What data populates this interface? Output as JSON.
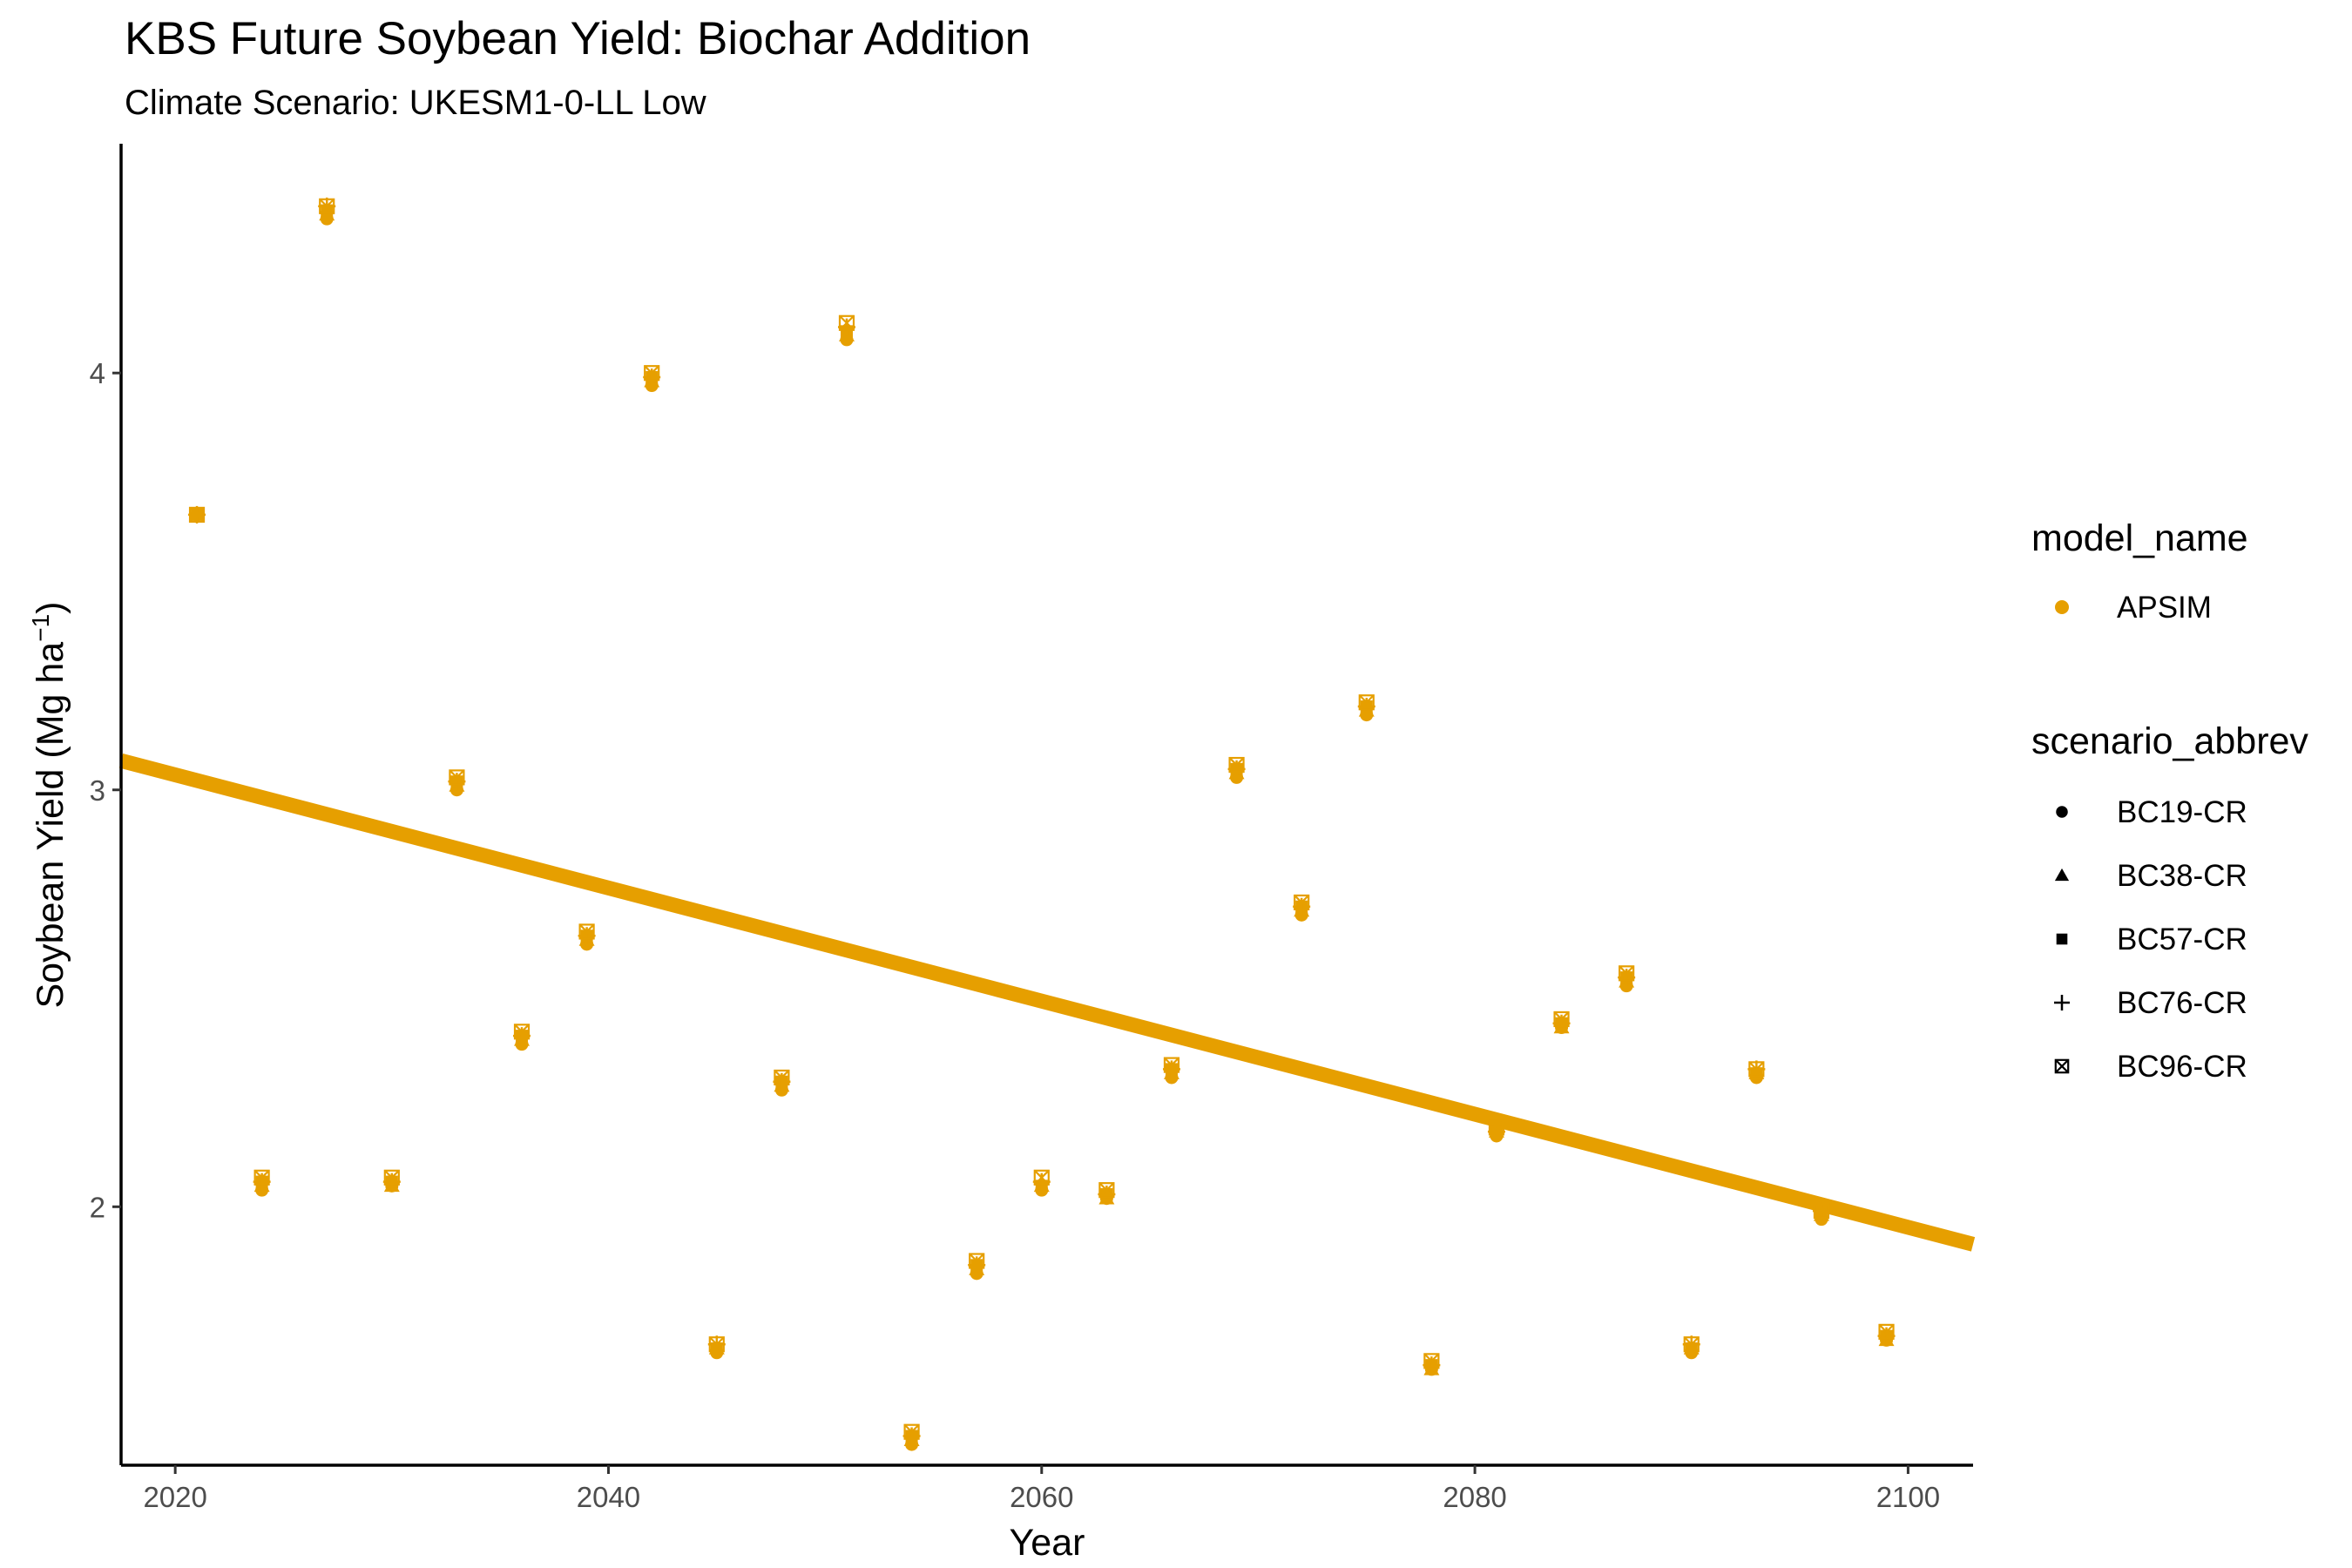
{
  "chart_data": {
    "type": "scatter",
    "title": "KBS Future Soybean Yield: Biochar Addition",
    "subtitle": "Climate Scenario: UKESM1-0-LL Low",
    "xlabel": "Year",
    "ylabel_main": "Soybean Yield (Mg ha",
    "ylabel_sup": "−1",
    "ylabel_close": ")",
    "xlim": [
      2017.5,
      2103
    ],
    "ylim": [
      1.38,
      4.55
    ],
    "x_ticks": [
      2020,
      2040,
      2060,
      2080,
      2100
    ],
    "y_ticks": [
      2,
      3,
      4
    ],
    "grid": false,
    "color": "#E69F00",
    "legend_placement": "right",
    "legend": {
      "color_title": "model_name",
      "color_entries": [
        "APSIM"
      ],
      "shape_title": "scenario_abbrev",
      "shape_entries": [
        {
          "label": "BC19-CR",
          "shape": "circle"
        },
        {
          "label": "BC38-CR",
          "shape": "triangle"
        },
        {
          "label": "BC57-CR",
          "shape": "square"
        },
        {
          "label": "BC76-CR",
          "shape": "plus"
        },
        {
          "label": "BC96-CR",
          "shape": "boxed-x"
        }
      ]
    },
    "trend_line": {
      "x": [
        2017.5,
        2103
      ],
      "y": [
        3.07,
        1.91
      ]
    },
    "x": [
      2021,
      2024,
      2027,
      2030,
      2033,
      2036,
      2039,
      2042,
      2045,
      2048,
      2051,
      2054,
      2057,
      2060,
      2063,
      2066,
      2069,
      2072,
      2075,
      2078,
      2081,
      2084,
      2087,
      2090,
      2093,
      2096,
      2099
    ],
    "series": [
      {
        "name": "BC19-CR",
        "values": [
          3.66,
          2.04,
          4.37,
          2.05,
          3.0,
          2.39,
          2.63,
          3.97,
          1.65,
          2.28,
          4.08,
          1.43,
          1.84,
          2.04,
          2.02,
          2.31,
          3.03,
          2.7,
          3.18,
          1.61,
          2.17,
          2.43,
          2.53,
          1.65,
          2.31,
          1.97,
          1.68
        ]
      },
      {
        "name": "BC38-CR",
        "values": [
          3.66,
          2.05,
          4.38,
          2.05,
          3.01,
          2.4,
          2.64,
          3.98,
          1.66,
          2.29,
          4.09,
          1.44,
          1.85,
          2.05,
          2.02,
          2.32,
          3.04,
          2.71,
          3.19,
          1.61,
          2.18,
          2.43,
          2.54,
          1.66,
          2.32,
          1.98,
          1.68
        ]
      },
      {
        "name": "BC57-CR",
        "values": [
          3.66,
          2.06,
          4.39,
          2.06,
          3.02,
          2.41,
          2.65,
          3.99,
          1.66,
          2.3,
          4.1,
          1.45,
          1.86,
          2.05,
          2.03,
          2.33,
          3.05,
          2.72,
          3.2,
          1.62,
          2.18,
          2.44,
          2.55,
          1.66,
          2.32,
          1.98,
          1.69
        ]
      },
      {
        "name": "BC76-CR",
        "values": [
          3.66,
          2.06,
          4.4,
          2.06,
          3.02,
          2.41,
          2.65,
          3.99,
          1.67,
          2.3,
          4.11,
          1.45,
          1.86,
          2.06,
          2.03,
          2.33,
          3.05,
          2.72,
          3.2,
          1.62,
          2.18,
          2.44,
          2.55,
          1.67,
          2.33,
          1.99,
          1.69
        ]
      },
      {
        "name": "BC96-CR",
        "values": [
          3.66,
          2.07,
          4.4,
          2.07,
          3.03,
          2.42,
          2.66,
          4.0,
          1.67,
          2.31,
          4.12,
          1.46,
          1.87,
          2.07,
          2.04,
          2.34,
          3.06,
          2.73,
          3.21,
          1.63,
          2.19,
          2.45,
          2.56,
          1.67,
          2.33,
          1.99,
          1.7
        ]
      }
    ]
  }
}
